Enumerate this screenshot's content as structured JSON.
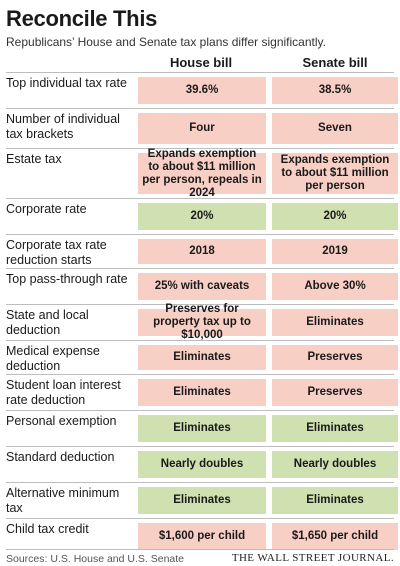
{
  "title": "Reconcile This",
  "subtitle": "Republicans’ House and Senate tax plans differ significantly.",
  "columns": {
    "house": "House bill",
    "senate": "Senate bill"
  },
  "colors": {
    "differ": "#f8cfc4",
    "same": "#cfe0b1"
  },
  "rows": [
    {
      "label": "Top individual tax rate",
      "house": "39.6%",
      "senate": "38.5%",
      "status": "differ"
    },
    {
      "label": "Number of individual tax brackets",
      "house": "Four",
      "senate": "Seven",
      "status": "differ"
    },
    {
      "label": "Estate tax",
      "house": "Expands exemption to about $11 million per person, repeals in 2024",
      "senate": "Expands exemption to about $11 million per person",
      "status": "differ"
    },
    {
      "label": "Corporate rate",
      "house": "20%",
      "senate": "20%",
      "status": "same"
    },
    {
      "label": "Corporate tax rate reduction starts",
      "house": "2018",
      "senate": "2019",
      "status": "differ"
    },
    {
      "label": "Top pass-through rate",
      "house": "25% with caveats",
      "senate": "Above 30%",
      "status": "differ"
    },
    {
      "label": "State and local deduction",
      "house": "Preserves for property tax up to $10,000",
      "senate": "Eliminates",
      "status": "differ"
    },
    {
      "label": "Medical expense deduction",
      "house": "Eliminates",
      "senate": "Preserves",
      "status": "differ"
    },
    {
      "label": "Student loan interest rate deduction",
      "house": "Eliminates",
      "senate": "Preserves",
      "status": "differ"
    },
    {
      "label": "Personal exemption",
      "house": "Eliminates",
      "senate": "Eliminates",
      "status": "same"
    },
    {
      "label": "Standard deduction",
      "house": "Nearly doubles",
      "senate": "Nearly doubles",
      "status": "same"
    },
    {
      "label": "Alternative minimum tax",
      "house": "Eliminates",
      "senate": "Eliminates",
      "status": "same"
    },
    {
      "label": "Child tax credit",
      "house": "$1,600 per child",
      "senate": "$1,650 per child",
      "status": "differ"
    }
  ],
  "source": "Sources: U.S. House and U.S. Senate",
  "brand": "THE WALL STREET JOURNAL."
}
